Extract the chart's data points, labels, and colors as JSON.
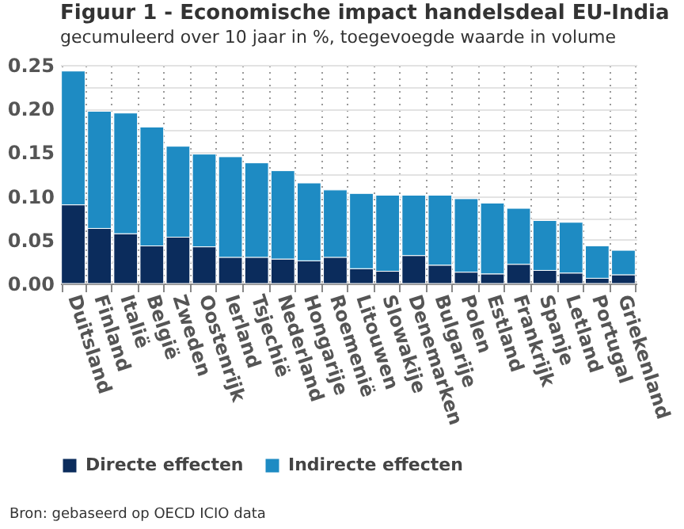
{
  "chart_data": {
    "type": "bar",
    "title": "Figuur 1 - Economische impact handelsdeal EU-India",
    "subtitle": "gecumuleerd over 10 jaar in %, toegevoegde waarde in volume",
    "categories": [
      "Duitsland",
      "Finland",
      "Italië",
      "België",
      "Zweden",
      "Oostenrijk",
      "Ierland",
      "Tsjechië",
      "Nederland",
      "Hongarije",
      "Roemenië",
      "Litouwen",
      "Slowakije",
      "Denemarken",
      "Bulgarije",
      "Polen",
      "Estland",
      "Frankrijk",
      "Spanje",
      "Letland",
      "Portugal",
      "Griekenland"
    ],
    "stacked": true,
    "series": [
      {
        "name": "Directe effecten",
        "color": "#0b2c5c",
        "values": [
          0.09,
          0.063,
          0.057,
          0.043,
          0.053,
          0.042,
          0.03,
          0.03,
          0.028,
          0.026,
          0.03,
          0.017,
          0.014,
          0.032,
          0.021,
          0.013,
          0.011,
          0.022,
          0.015,
          0.012,
          0.006,
          0.01
        ]
      },
      {
        "name": "Indirecte effecten",
        "color": "#1e8bc3",
        "values": [
          0.153,
          0.134,
          0.138,
          0.136,
          0.104,
          0.106,
          0.115,
          0.108,
          0.101,
          0.089,
          0.077,
          0.086,
          0.087,
          0.069,
          0.08,
          0.084,
          0.081,
          0.064,
          0.057,
          0.058,
          0.037,
          0.028
        ]
      }
    ],
    "ylim": [
      0,
      0.25
    ],
    "yticks": [
      {
        "value": 0,
        "label": "0.00"
      },
      {
        "value": 0.025,
        "label": null
      },
      {
        "value": 0.05,
        "label": "0.05"
      },
      {
        "value": 0.075,
        "label": null
      },
      {
        "value": 0.1,
        "label": "0.10"
      },
      {
        "value": 0.125,
        "label": null
      },
      {
        "value": 0.15,
        "label": "0.15"
      },
      {
        "value": 0.175,
        "label": null
      },
      {
        "value": 0.2,
        "label": "0.20"
      },
      {
        "value": 0.225,
        "label": null
      },
      {
        "value": 0.25,
        "label": "0.25"
      }
    ],
    "grid": true,
    "legend": "bottom",
    "annotations": [
      "Bron: gebaseerd op OECD ICIO data"
    ]
  }
}
